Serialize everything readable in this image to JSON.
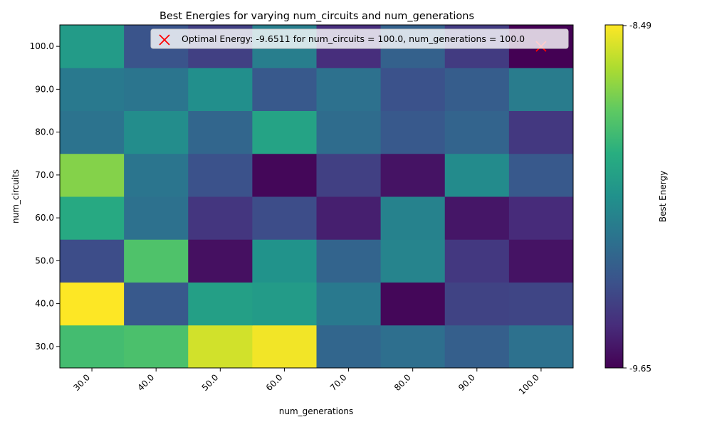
{
  "chart_data": {
    "type": "heatmap",
    "title": "Best Energies for varying num_circuits and num_generations",
    "xlabel": "num_generations",
    "ylabel": "num_circuits",
    "x_categories": [
      "30.0",
      "40.0",
      "50.0",
      "60.0",
      "70.0",
      "80.0",
      "90.0",
      "100.0"
    ],
    "y_categories": [
      "30.0",
      "40.0",
      "50.0",
      "60.0",
      "70.0",
      "80.0",
      "90.0",
      "100.0"
    ],
    "values": [
      [
        -8.85,
        -8.83,
        -8.57,
        -8.51,
        -9.27,
        -9.23,
        -9.3,
        -9.22
      ],
      [
        -8.49,
        -9.33,
        -9.0,
        -9.02,
        -9.18,
        -9.63,
        -9.42,
        -9.41
      ],
      [
        -9.38,
        -8.82,
        -9.6,
        -9.06,
        -9.28,
        -9.13,
        -9.46,
        -9.59
      ],
      [
        -8.95,
        -9.22,
        -9.47,
        -9.38,
        -9.55,
        -9.14,
        -9.58,
        -9.51
      ],
      [
        -8.71,
        -9.2,
        -9.36,
        -9.63,
        -9.43,
        -9.59,
        -9.1,
        -9.33
      ],
      [
        -9.21,
        -9.09,
        -9.27,
        -8.98,
        -9.24,
        -9.33,
        -9.28,
        -9.46
      ],
      [
        -9.18,
        -9.2,
        -9.08,
        -9.33,
        -9.22,
        -9.36,
        -9.31,
        -9.17
      ],
      [
        -9.02,
        -9.35,
        -9.43,
        -9.16,
        -9.5,
        -9.29,
        -9.45,
        -9.6511
      ]
    ],
    "colormap": "viridis",
    "colorbar": {
      "label": "Best Energy",
      "min": -9.65,
      "max": -8.49,
      "min_label": "-9.65",
      "max_label": "-8.49"
    },
    "marker": {
      "x": "100.0",
      "y": "100.0",
      "symbol": "x",
      "color": "#ff0000"
    },
    "legend": {
      "placement": "top-right",
      "entries": [
        "Optimal Energy: -9.6511 for num_circuits = 100.0, num_generations = 100.0"
      ]
    }
  }
}
